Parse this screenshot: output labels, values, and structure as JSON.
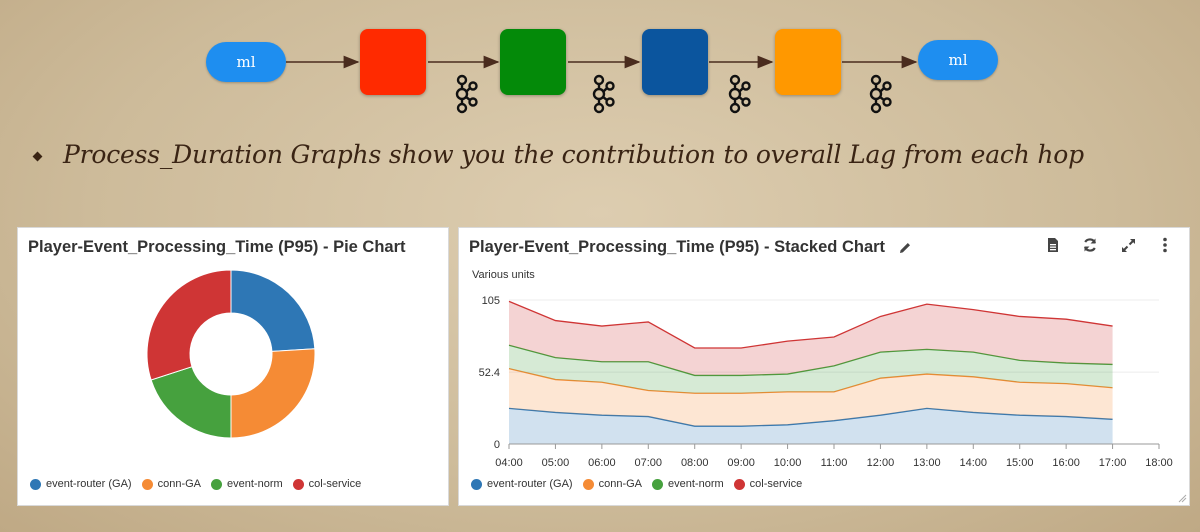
{
  "pipeline": {
    "source_label": "ml",
    "sink_label": "ml",
    "stage_colors": [
      "#ff2a00",
      "#048a09",
      "#0b559e",
      "#ff9800"
    ],
    "pill_color": "#1e8ef0",
    "connector_icon": "kafka-icon"
  },
  "bullet": {
    "text": "Process_Duration Graphs show you the contribution to overall Lag from each hop"
  },
  "pie_panel": {
    "title": "Player-Event_Processing_Time (P95) - Pie Chart"
  },
  "stacked_panel": {
    "title": "Player-Event_Processing_Time (P95) - Stacked Chart",
    "units_label": "Various units",
    "icons": [
      "edit-pencil-icon",
      "document-icon",
      "refresh-icon",
      "expand-icon",
      "more-vertical-icon"
    ]
  },
  "series_names": [
    "event-router (GA)",
    "conn-GA",
    "event-norm",
    "col-service"
  ],
  "series_colors": [
    "#2e77b5",
    "#f58b35",
    "#46a13e",
    "#cf3535"
  ],
  "chart_data": [
    {
      "type": "pie",
      "donut": true,
      "series": [
        {
          "name": "event-router (GA)",
          "value": 24
        },
        {
          "name": "conn-GA",
          "value": 26
        },
        {
          "name": "event-norm",
          "value": 20
        },
        {
          "name": "col-service",
          "value": 30
        }
      ],
      "title": "Player-Event_Processing_Time (P95) - Pie Chart",
      "legend": "bottom"
    },
    {
      "type": "area",
      "stacked": true,
      "x": [
        "04:00",
        "05:00",
        "06:00",
        "07:00",
        "08:00",
        "09:00",
        "10:00",
        "11:00",
        "12:00",
        "13:00",
        "14:00",
        "15:00",
        "16:00",
        "17:00"
      ],
      "x_ticks": [
        "04:00",
        "05:00",
        "06:00",
        "07:00",
        "08:00",
        "09:00",
        "10:00",
        "11:00",
        "12:00",
        "13:00",
        "14:00",
        "15:00",
        "16:00",
        "17:00",
        "18:00"
      ],
      "series": [
        {
          "name": "event-router (GA)",
          "values": [
            26,
            23,
            21,
            20,
            13,
            13,
            14,
            17,
            21,
            26,
            23,
            21,
            20,
            18
          ]
        },
        {
          "name": "conn-GA",
          "values": [
            29,
            24,
            24,
            19,
            24,
            24,
            24,
            21,
            27,
            25,
            26,
            24,
            24,
            23
          ]
        },
        {
          "name": "event-norm",
          "values": [
            17,
            16,
            15,
            21,
            13,
            13,
            13,
            19,
            19,
            18,
            18,
            16,
            15,
            17
          ]
        },
        {
          "name": "col-service",
          "values": [
            32,
            27,
            26,
            29,
            20,
            20,
            24,
            21,
            26,
            33,
            31,
            32,
            32,
            28
          ]
        }
      ],
      "title": "Player-Event_Processing_Time (P95) - Stacked Chart",
      "ylabel": "Various units",
      "y_ticks": [
        0,
        52.4,
        105
      ],
      "ylim": [
        0,
        105
      ],
      "xlim": [
        "04:00",
        "18:00"
      ],
      "grid": true,
      "legend": "bottom"
    }
  ]
}
